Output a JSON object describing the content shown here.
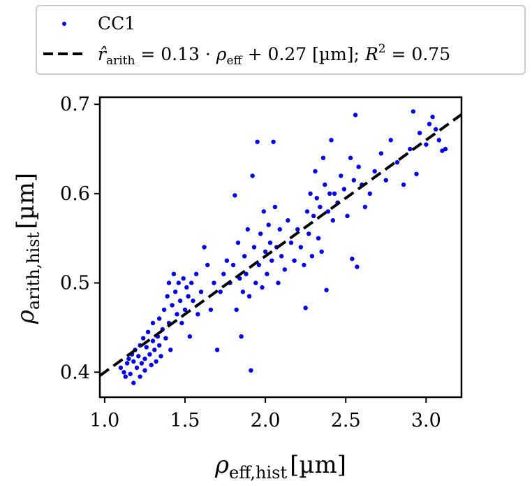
{
  "chart_data": {
    "type": "scatter",
    "title": "",
    "xlabel": {
      "base": "ρ",
      "sub": "eff,hist",
      "unit": "[µm]"
    },
    "ylabel": {
      "base": "ρ",
      "sub": "arith,hist",
      "unit": "[µm]"
    },
    "xlim": [
      0.97,
      3.22
    ],
    "ylim": [
      0.372,
      0.708
    ],
    "x_ticks": [
      1.0,
      1.5,
      2.0,
      2.5,
      3.0
    ],
    "x_tick_labels": [
      "1.0",
      "1.5",
      "2.0",
      "2.5",
      "3.0"
    ],
    "y_ticks": [
      0.4,
      0.5,
      0.6,
      0.7
    ],
    "y_tick_labels": [
      "0.4",
      "0.5",
      "0.6",
      "0.7"
    ],
    "grid": false,
    "legend_position": "top-center",
    "colors": {
      "scatter": "#0000ee",
      "fit": "#000000",
      "legend_border": "#cccccc"
    },
    "series": [
      {
        "name": "CC1",
        "kind": "scatter",
        "points": [
          [
            1.1,
            0.405
          ],
          [
            1.12,
            0.4
          ],
          [
            1.13,
            0.395
          ],
          [
            1.14,
            0.41
          ],
          [
            1.15,
            0.415
          ],
          [
            1.16,
            0.398
          ],
          [
            1.17,
            0.42
          ],
          [
            1.18,
            0.388
          ],
          [
            1.18,
            0.412
          ],
          [
            1.19,
            0.425
          ],
          [
            1.2,
            0.405
          ],
          [
            1.21,
            0.418
          ],
          [
            1.22,
            0.43
          ],
          [
            1.22,
            0.395
          ],
          [
            1.23,
            0.41
          ],
          [
            1.24,
            0.438
          ],
          [
            1.25,
            0.415
          ],
          [
            1.25,
            0.402
          ],
          [
            1.26,
            0.428
          ],
          [
            1.27,
            0.445
          ],
          [
            1.28,
            0.42
          ],
          [
            1.29,
            0.408
          ],
          [
            1.3,
            0.435
          ],
          [
            1.3,
            0.455
          ],
          [
            1.31,
            0.425
          ],
          [
            1.32,
            0.412
          ],
          [
            1.33,
            0.44
          ],
          [
            1.34,
            0.46
          ],
          [
            1.34,
            0.43
          ],
          [
            1.35,
            0.418
          ],
          [
            1.36,
            0.448
          ],
          [
            1.37,
            0.47
          ],
          [
            1.38,
            0.438
          ],
          [
            1.39,
            0.485
          ],
          [
            1.4,
            0.455
          ],
          [
            1.4,
            0.5
          ],
          [
            1.41,
            0.425
          ],
          [
            1.42,
            0.475
          ],
          [
            1.43,
            0.51
          ],
          [
            1.44,
            0.49
          ],
          [
            1.45,
            0.465
          ],
          [
            1.46,
            0.5
          ],
          [
            1.47,
            0.48
          ],
          [
            1.48,
            0.455
          ],
          [
            1.49,
            0.505
          ],
          [
            1.5,
            0.47
          ],
          [
            1.51,
            0.495
          ],
          [
            1.52,
            0.485
          ],
          [
            1.53,
            0.44
          ],
          [
            1.54,
            0.5
          ],
          [
            1.55,
            0.48
          ],
          [
            1.57,
            0.51
          ],
          [
            1.58,
            0.465
          ],
          [
            1.6,
            0.49
          ],
          [
            1.62,
            0.54
          ],
          [
            1.64,
            0.52
          ],
          [
            1.66,
            0.47
          ],
          [
            1.68,
            0.5
          ],
          [
            1.7,
            0.425
          ],
          [
            1.72,
            0.49
          ],
          [
            1.74,
            0.51
          ],
          [
            1.76,
            0.525
          ],
          [
            1.78,
            0.5
          ],
          [
            1.8,
            0.52
          ],
          [
            1.81,
            0.598
          ],
          [
            1.82,
            0.47
          ],
          [
            1.83,
            0.545
          ],
          [
            1.84,
            0.505
          ],
          [
            1.85,
            0.44
          ],
          [
            1.86,
            0.49
          ],
          [
            1.87,
            0.53
          ],
          [
            1.88,
            0.51
          ],
          [
            1.89,
            0.56
          ],
          [
            1.9,
            0.485
          ],
          [
            1.91,
            0.402
          ],
          [
            1.92,
            0.62
          ],
          [
            1.93,
            0.54
          ],
          [
            1.94,
            0.5
          ],
          [
            1.95,
            0.658
          ],
          [
            1.96,
            0.52
          ],
          [
            1.97,
            0.555
          ],
          [
            1.98,
            0.495
          ],
          [
            1.99,
            0.58
          ],
          [
            2.0,
            0.535
          ],
          [
            2.01,
            0.51
          ],
          [
            2.02,
            0.565
          ],
          [
            2.03,
            0.545
          ],
          [
            2.04,
            0.525
          ],
          [
            2.05,
            0.658
          ],
          [
            2.06,
            0.585
          ],
          [
            2.07,
            0.54
          ],
          [
            2.08,
            0.5
          ],
          [
            2.09,
            0.56
          ],
          [
            2.1,
            0.53
          ],
          [
            2.12,
            0.515
          ],
          [
            2.14,
            0.57
          ],
          [
            2.16,
            0.545
          ],
          [
            2.18,
            0.525
          ],
          [
            2.2,
            0.56
          ],
          [
            2.22,
            0.54
          ],
          [
            2.24,
            0.52
          ],
          [
            2.25,
            0.472
          ],
          [
            2.26,
            0.58
          ],
          [
            2.27,
            0.555
          ],
          [
            2.28,
            0.6
          ],
          [
            2.29,
            0.53
          ],
          [
            2.3,
            0.575
          ],
          [
            2.31,
            0.625
          ],
          [
            2.32,
            0.595
          ],
          [
            2.33,
            0.55
          ],
          [
            2.34,
            0.585
          ],
          [
            2.35,
            0.535
          ],
          [
            2.36,
            0.64
          ],
          [
            2.37,
            0.61
          ],
          [
            2.38,
            0.492
          ],
          [
            2.39,
            0.58
          ],
          [
            2.4,
            0.6
          ],
          [
            2.41,
            0.66
          ],
          [
            2.42,
            0.57
          ],
          [
            2.43,
            0.6
          ],
          [
            2.45,
            0.59
          ],
          [
            2.47,
            0.62
          ],
          [
            2.49,
            0.605
          ],
          [
            2.51,
            0.575
          ],
          [
            2.53,
            0.64
          ],
          [
            2.54,
            0.527
          ],
          [
            2.55,
            0.615
          ],
          [
            2.56,
            0.688
          ],
          [
            2.57,
            0.518
          ],
          [
            2.58,
            0.63
          ],
          [
            2.6,
            0.61
          ],
          [
            2.62,
            0.585
          ],
          [
            2.65,
            0.6
          ],
          [
            2.68,
            0.625
          ],
          [
            2.72,
            0.645
          ],
          [
            2.75,
            0.615
          ],
          [
            2.78,
            0.66
          ],
          [
            2.82,
            0.635
          ],
          [
            2.86,
            0.61
          ],
          [
            2.9,
            0.65
          ],
          [
            2.92,
            0.692
          ],
          [
            2.94,
            0.622
          ],
          [
            2.96,
            0.668
          ],
          [
            3.0,
            0.655
          ],
          [
            3.02,
            0.678
          ],
          [
            3.04,
            0.686
          ],
          [
            3.06,
            0.672
          ],
          [
            3.08,
            0.66
          ],
          [
            3.1,
            0.648
          ],
          [
            3.12,
            0.65
          ]
        ]
      },
      {
        "name": "r̂arith = 0.13 · ρeff + 0.27 [µm]; R² = 0.75",
        "kind": "line",
        "style": "dashed",
        "slope": 0.13,
        "intercept": 0.27,
        "r_squared": 0.75
      }
    ],
    "legend": {
      "scatter_label": "CC1",
      "fit_label": {
        "rhat": "r̂",
        "rhat_sub": "arith",
        "eq1": " = 0.13 · ",
        "rho": "ρ",
        "rho_sub": "eff",
        "eq2": " + 0.27 [µm];  ",
        "r2": "R",
        "r2_sup": "2",
        "eq3": " = 0.75"
      }
    }
  }
}
